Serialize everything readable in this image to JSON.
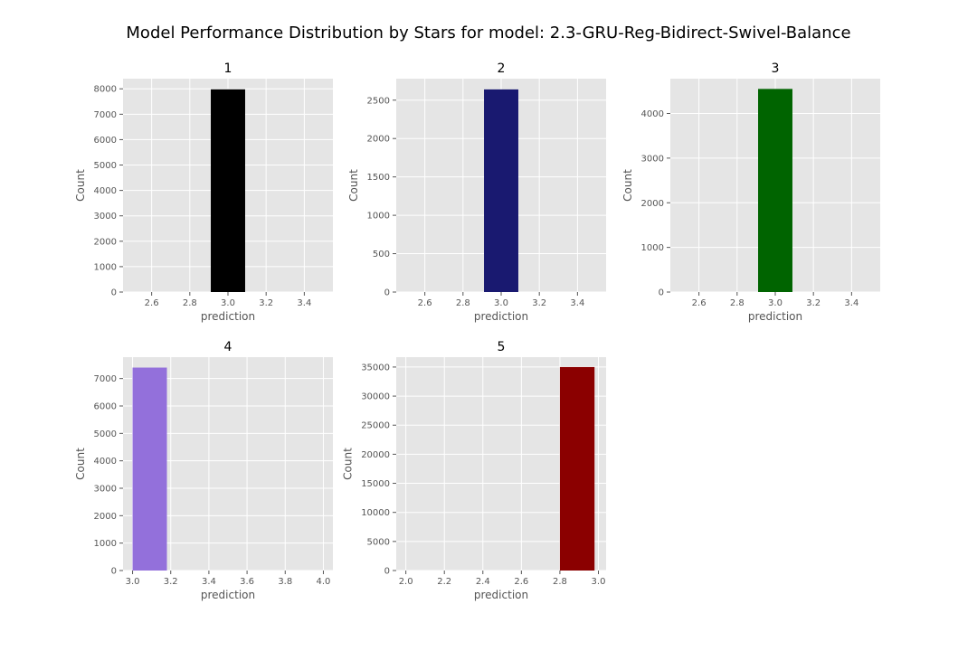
{
  "figure": {
    "title": "Model Performance Distribution by Stars for model: 2.3-GRU-Reg-Bidirect-Swivel-Balance"
  },
  "colors": {
    "panel_bg": "#e5e5e5",
    "grid": "#ffffff",
    "tick_text": "#555555"
  },
  "chart_data": [
    {
      "type": "bar",
      "title": "1",
      "xlabel": "prediction",
      "ylabel": "Count",
      "xlim": [
        2.45,
        3.55
      ],
      "ylim": [
        0,
        8400
      ],
      "xticks": [
        2.6,
        2.8,
        3.0,
        3.2,
        3.4
      ],
      "xtick_labels": [
        "2.6",
        "2.8",
        "3.0",
        "3.2",
        "3.4"
      ],
      "yticks": [
        0,
        1000,
        2000,
        3000,
        4000,
        5000,
        6000,
        7000,
        8000
      ],
      "ytick_labels": [
        "0",
        "1000",
        "2000",
        "3000",
        "4000",
        "5000",
        "6000",
        "7000",
        "8000"
      ],
      "bars": [
        {
          "x0": 2.91,
          "x1": 3.09,
          "value": 7980
        }
      ],
      "color": "#000000",
      "grid": true
    },
    {
      "type": "bar",
      "title": "2",
      "xlabel": "prediction",
      "ylabel": "Count",
      "xlim": [
        2.45,
        3.55
      ],
      "ylim": [
        0,
        2780
      ],
      "xticks": [
        2.6,
        2.8,
        3.0,
        3.2,
        3.4
      ],
      "xtick_labels": [
        "2.6",
        "2.8",
        "3.0",
        "3.2",
        "3.4"
      ],
      "yticks": [
        0,
        500,
        1000,
        1500,
        2000,
        2500
      ],
      "ytick_labels": [
        "0",
        "500",
        "1000",
        "1500",
        "2000",
        "2500"
      ],
      "bars": [
        {
          "x0": 2.91,
          "x1": 3.09,
          "value": 2640
        }
      ],
      "color": "#191970",
      "grid": true
    },
    {
      "type": "bar",
      "title": "3",
      "xlabel": "prediction",
      "ylabel": "Count",
      "xlim": [
        2.45,
        3.55
      ],
      "ylim": [
        0,
        4780
      ],
      "xticks": [
        2.6,
        2.8,
        3.0,
        3.2,
        3.4
      ],
      "xtick_labels": [
        "2.6",
        "2.8",
        "3.0",
        "3.2",
        "3.4"
      ],
      "yticks": [
        0,
        1000,
        2000,
        3000,
        4000
      ],
      "ytick_labels": [
        "0",
        "1000",
        "2000",
        "3000",
        "4000"
      ],
      "bars": [
        {
          "x0": 2.91,
          "x1": 3.09,
          "value": 4550
        }
      ],
      "color": "#006400",
      "grid": true
    },
    {
      "type": "bar",
      "title": "4",
      "xlabel": "prediction",
      "ylabel": "Count",
      "xlim": [
        2.95,
        4.05
      ],
      "ylim": [
        0,
        7780
      ],
      "xticks": [
        3.0,
        3.2,
        3.4,
        3.6,
        3.8,
        4.0
      ],
      "xtick_labels": [
        "3.0",
        "3.2",
        "3.4",
        "3.6",
        "3.8",
        "4.0"
      ],
      "yticks": [
        0,
        1000,
        2000,
        3000,
        4000,
        5000,
        6000,
        7000
      ],
      "ytick_labels": [
        "0",
        "1000",
        "2000",
        "3000",
        "4000",
        "5000",
        "6000",
        "7000"
      ],
      "bars": [
        {
          "x0": 3.0,
          "x1": 3.18,
          "value": 7400
        }
      ],
      "color": "#9370db",
      "grid": true
    },
    {
      "type": "bar",
      "title": "5",
      "xlabel": "prediction",
      "ylabel": "Count",
      "xlim": [
        1.95,
        3.04
      ],
      "ylim": [
        0,
        36700
      ],
      "xticks": [
        2.0,
        2.2,
        2.4,
        2.6,
        2.8,
        3.0
      ],
      "xtick_labels": [
        "2.0",
        "2.2",
        "2.4",
        "2.6",
        "2.8",
        "3.0"
      ],
      "yticks": [
        0,
        5000,
        10000,
        15000,
        20000,
        25000,
        30000,
        35000
      ],
      "ytick_labels": [
        "0",
        "5000",
        "10000",
        "15000",
        "20000",
        "25000",
        "30000",
        "35000"
      ],
      "bars": [
        {
          "x0": 2.8,
          "x1": 2.98,
          "value": 35000
        }
      ],
      "color": "#8b0000",
      "grid": true
    }
  ]
}
